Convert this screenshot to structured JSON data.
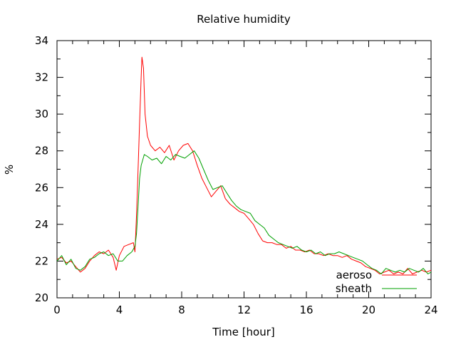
{
  "chart_data": {
    "type": "line",
    "title": "Relative humidity",
    "xlabel": "Time [hour]",
    "ylabel": "%",
    "xlim": [
      0,
      24
    ],
    "ylim": [
      20,
      34
    ],
    "x_ticks": [
      0,
      4,
      8,
      12,
      16,
      20,
      24
    ],
    "y_ticks": [
      20,
      22,
      24,
      26,
      28,
      30,
      32,
      34
    ],
    "x_minor_step": 1,
    "y_minor_step": 1,
    "grid": false,
    "legend_position": "bottom-right",
    "series": [
      {
        "name": "aeroso",
        "color": "#ff0000",
        "points": [
          [
            0.0,
            22.1
          ],
          [
            0.3,
            22.2
          ],
          [
            0.6,
            21.9
          ],
          [
            0.9,
            22.0
          ],
          [
            1.2,
            21.7
          ],
          [
            1.5,
            21.4
          ],
          [
            1.8,
            21.6
          ],
          [
            2.1,
            22.0
          ],
          [
            2.4,
            22.3
          ],
          [
            2.7,
            22.5
          ],
          [
            3.0,
            22.4
          ],
          [
            3.3,
            22.6
          ],
          [
            3.6,
            22.2
          ],
          [
            3.8,
            21.5
          ],
          [
            4.0,
            22.3
          ],
          [
            4.3,
            22.8
          ],
          [
            4.6,
            22.9
          ],
          [
            4.9,
            23.0
          ],
          [
            5.0,
            22.5
          ],
          [
            5.1,
            24.5
          ],
          [
            5.2,
            27.0
          ],
          [
            5.3,
            29.5
          ],
          [
            5.4,
            32.0
          ],
          [
            5.45,
            33.1
          ],
          [
            5.55,
            32.5
          ],
          [
            5.65,
            30.0
          ],
          [
            5.8,
            28.8
          ],
          [
            6.0,
            28.3
          ],
          [
            6.3,
            28.0
          ],
          [
            6.6,
            28.2
          ],
          [
            6.9,
            27.9
          ],
          [
            7.2,
            28.3
          ],
          [
            7.5,
            27.5
          ],
          [
            7.8,
            28.0
          ],
          [
            8.1,
            28.3
          ],
          [
            8.4,
            28.4
          ],
          [
            8.7,
            28.0
          ],
          [
            9.0,
            27.2
          ],
          [
            9.3,
            26.5
          ],
          [
            9.6,
            26.0
          ],
          [
            9.9,
            25.5
          ],
          [
            10.2,
            25.8
          ],
          [
            10.5,
            26.1
          ],
          [
            10.8,
            25.4
          ],
          [
            11.1,
            25.1
          ],
          [
            11.4,
            24.9
          ],
          [
            11.7,
            24.7
          ],
          [
            12.0,
            24.6
          ],
          [
            12.3,
            24.3
          ],
          [
            12.6,
            24.0
          ],
          [
            12.9,
            23.5
          ],
          [
            13.2,
            23.1
          ],
          [
            13.5,
            23.0
          ],
          [
            13.8,
            23.0
          ],
          [
            14.1,
            22.9
          ],
          [
            14.4,
            22.9
          ],
          [
            14.7,
            22.7
          ],
          [
            15.0,
            22.8
          ],
          [
            15.3,
            22.6
          ],
          [
            15.6,
            22.6
          ],
          [
            15.9,
            22.5
          ],
          [
            16.2,
            22.6
          ],
          [
            16.5,
            22.4
          ],
          [
            16.8,
            22.4
          ],
          [
            17.1,
            22.3
          ],
          [
            17.4,
            22.4
          ],
          [
            17.7,
            22.3
          ],
          [
            18.0,
            22.3
          ],
          [
            18.3,
            22.2
          ],
          [
            18.6,
            22.3
          ],
          [
            18.9,
            22.1
          ],
          [
            19.2,
            22.0
          ],
          [
            19.5,
            21.9
          ],
          [
            19.8,
            21.7
          ],
          [
            20.1,
            21.6
          ],
          [
            20.4,
            21.5
          ],
          [
            20.7,
            21.3
          ],
          [
            21.0,
            21.4
          ],
          [
            21.3,
            21.5
          ],
          [
            21.6,
            21.3
          ],
          [
            21.9,
            21.4
          ],
          [
            22.2,
            21.3
          ],
          [
            22.5,
            21.6
          ],
          [
            22.8,
            21.3
          ],
          [
            23.1,
            21.4
          ],
          [
            23.4,
            21.5
          ],
          [
            23.7,
            21.4
          ],
          [
            24.0,
            21.5
          ]
        ]
      },
      {
        "name": "sheath",
        "color": "#00a000",
        "points": [
          [
            0.0,
            22.0
          ],
          [
            0.3,
            22.3
          ],
          [
            0.6,
            21.8
          ],
          [
            0.9,
            22.1
          ],
          [
            1.2,
            21.6
          ],
          [
            1.5,
            21.5
          ],
          [
            1.8,
            21.7
          ],
          [
            2.1,
            22.1
          ],
          [
            2.4,
            22.2
          ],
          [
            2.7,
            22.4
          ],
          [
            3.0,
            22.5
          ],
          [
            3.3,
            22.3
          ],
          [
            3.6,
            22.4
          ],
          [
            3.9,
            22.0
          ],
          [
            4.2,
            22.0
          ],
          [
            4.5,
            22.3
          ],
          [
            4.8,
            22.5
          ],
          [
            5.0,
            22.8
          ],
          [
            5.1,
            23.5
          ],
          [
            5.2,
            25.0
          ],
          [
            5.3,
            26.5
          ],
          [
            5.4,
            27.2
          ],
          [
            5.6,
            27.8
          ],
          [
            5.8,
            27.7
          ],
          [
            6.1,
            27.5
          ],
          [
            6.4,
            27.6
          ],
          [
            6.7,
            27.3
          ],
          [
            7.0,
            27.7
          ],
          [
            7.3,
            27.5
          ],
          [
            7.6,
            27.8
          ],
          [
            7.9,
            27.7
          ],
          [
            8.2,
            27.6
          ],
          [
            8.5,
            27.8
          ],
          [
            8.8,
            28.0
          ],
          [
            9.1,
            27.6
          ],
          [
            9.4,
            27.0
          ],
          [
            9.7,
            26.4
          ],
          [
            10.0,
            25.9
          ],
          [
            10.3,
            26.0
          ],
          [
            10.6,
            26.1
          ],
          [
            10.9,
            25.7
          ],
          [
            11.2,
            25.3
          ],
          [
            11.5,
            25.0
          ],
          [
            11.8,
            24.8
          ],
          [
            12.1,
            24.7
          ],
          [
            12.4,
            24.6
          ],
          [
            12.7,
            24.2
          ],
          [
            13.0,
            24.0
          ],
          [
            13.3,
            23.8
          ],
          [
            13.6,
            23.4
          ],
          [
            13.9,
            23.2
          ],
          [
            14.2,
            23.0
          ],
          [
            14.5,
            22.9
          ],
          [
            14.8,
            22.8
          ],
          [
            15.1,
            22.7
          ],
          [
            15.4,
            22.8
          ],
          [
            15.7,
            22.6
          ],
          [
            16.0,
            22.5
          ],
          [
            16.3,
            22.6
          ],
          [
            16.6,
            22.4
          ],
          [
            16.9,
            22.5
          ],
          [
            17.2,
            22.3
          ],
          [
            17.5,
            22.4
          ],
          [
            17.8,
            22.4
          ],
          [
            18.1,
            22.5
          ],
          [
            18.4,
            22.4
          ],
          [
            18.7,
            22.3
          ],
          [
            19.0,
            22.2
          ],
          [
            19.3,
            22.1
          ],
          [
            19.6,
            22.0
          ],
          [
            19.9,
            21.8
          ],
          [
            20.2,
            21.6
          ],
          [
            20.5,
            21.5
          ],
          [
            20.8,
            21.3
          ],
          [
            21.1,
            21.6
          ],
          [
            21.4,
            21.5
          ],
          [
            21.7,
            21.4
          ],
          [
            22.0,
            21.5
          ],
          [
            22.3,
            21.4
          ],
          [
            22.6,
            21.6
          ],
          [
            22.9,
            21.5
          ],
          [
            23.2,
            21.4
          ],
          [
            23.5,
            21.6
          ],
          [
            23.8,
            21.3
          ],
          [
            24.0,
            21.4
          ]
        ]
      }
    ]
  }
}
